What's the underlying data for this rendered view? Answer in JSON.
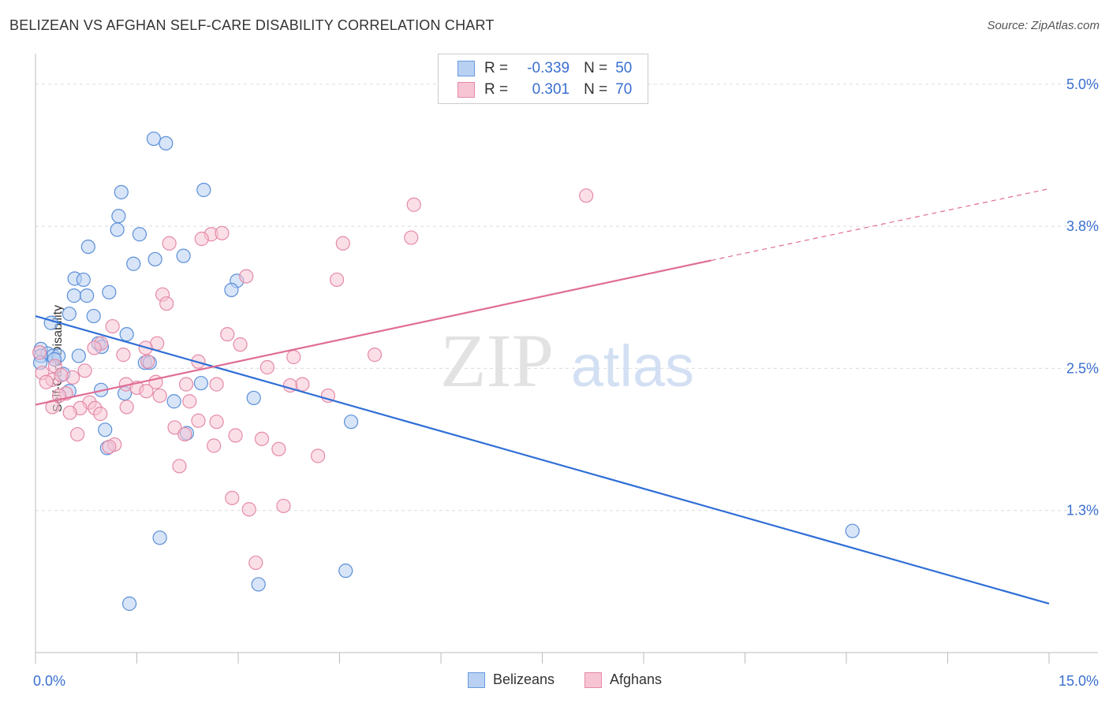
{
  "header": {
    "title": "BELIZEAN VS AFGHAN SELF-CARE DISABILITY CORRELATION CHART",
    "source": "Source: ZipAtlas.com"
  },
  "watermark": {
    "zip": "ZIP",
    "atlas": "atlas"
  },
  "legend": {
    "rows": [
      {
        "r_label": "R =",
        "r_value": "-0.339",
        "n_label": "N =",
        "n_value": "50",
        "color": "#6a9be0",
        "fill": "#b8d0f2"
      },
      {
        "r_label": "R =",
        "r_value": "0.301",
        "n_label": "N =",
        "n_value": "70",
        "color": "#e48aa8",
        "fill": "#f7c4d4"
      }
    ]
  },
  "bottom_legend": {
    "items": [
      "Belizeans",
      "Afghans"
    ]
  },
  "chart_data": {
    "type": "scatter",
    "title": "BELIZEAN VS AFGHAN SELF-CARE DISABILITY CORRELATION CHART",
    "xlabel": "",
    "ylabel": "Self-Care Disability",
    "xlim": [
      0,
      15
    ],
    "ylim": [
      0,
      5.2
    ],
    "x_tick_labels": [
      "0.0%",
      "15.0%"
    ],
    "y_ticks": [
      1.25,
      2.5,
      3.75,
      5.0
    ],
    "y_tick_labels": [
      "1.3%",
      "2.5%",
      "3.8%",
      "5.0%"
    ],
    "grid": true,
    "legend_position": "top-center",
    "series": [
      {
        "name": "Belizeans",
        "color": "#5b8fd9",
        "fill": "#b8d0f2",
        "trend": {
          "x0": 0,
          "y0": 2.96,
          "x1": 15,
          "y1": 0.43,
          "color": "#2f6fd6"
        },
        "points": [
          [
            1.75,
            4.52
          ],
          [
            1.93,
            4.48
          ],
          [
            1.27,
            4.05
          ],
          [
            2.49,
            4.07
          ],
          [
            1.23,
            3.84
          ],
          [
            1.21,
            3.72
          ],
          [
            1.54,
            3.68
          ],
          [
            0.78,
            3.57
          ],
          [
            1.77,
            3.46
          ],
          [
            1.45,
            3.42
          ],
          [
            2.19,
            3.49
          ],
          [
            0.58,
            3.29
          ],
          [
            0.71,
            3.28
          ],
          [
            2.98,
            3.27
          ],
          [
            2.9,
            3.19
          ],
          [
            1.09,
            3.17
          ],
          [
            0.57,
            3.14
          ],
          [
            0.76,
            3.14
          ],
          [
            0.5,
            2.98
          ],
          [
            0.86,
            2.96
          ],
          [
            0.23,
            2.9
          ],
          [
            1.35,
            2.8
          ],
          [
            0.93,
            2.72
          ],
          [
            0.98,
            2.69
          ],
          [
            0.08,
            2.67
          ],
          [
            0.18,
            2.63
          ],
          [
            0.26,
            2.61
          ],
          [
            0.34,
            2.61
          ],
          [
            0.08,
            2.61
          ],
          [
            0.64,
            2.61
          ],
          [
            0.28,
            2.58
          ],
          [
            0.07,
            2.55
          ],
          [
            1.62,
            2.55
          ],
          [
            1.69,
            2.55
          ],
          [
            0.41,
            2.45
          ],
          [
            2.45,
            2.37
          ],
          [
            0.97,
            2.31
          ],
          [
            1.32,
            2.28
          ],
          [
            3.23,
            2.24
          ],
          [
            2.05,
            2.21
          ],
          [
            4.67,
            2.03
          ],
          [
            1.03,
            1.96
          ],
          [
            2.24,
            1.93
          ],
          [
            1.06,
            1.8
          ],
          [
            12.09,
            1.07
          ],
          [
            1.84,
            1.01
          ],
          [
            4.59,
            0.72
          ],
          [
            3.3,
            0.6
          ],
          [
            1.39,
            0.43
          ],
          [
            0.5,
            2.3
          ]
        ]
      },
      {
        "name": "Afghans",
        "color": "#e48aa8",
        "fill": "#f7c4d4",
        "trend": {
          "x0": 0,
          "y0": 2.18,
          "x1": 10.0,
          "y1": 3.45,
          "x2": 15,
          "y2": 4.08,
          "color": "#e06d94"
        },
        "points": [
          [
            5.6,
            3.94
          ],
          [
            8.15,
            4.02
          ],
          [
            2.6,
            3.68
          ],
          [
            2.76,
            3.69
          ],
          [
            2.46,
            3.64
          ],
          [
            5.56,
            3.65
          ],
          [
            4.55,
            3.6
          ],
          [
            1.98,
            3.6
          ],
          [
            3.12,
            3.31
          ],
          [
            4.46,
            3.28
          ],
          [
            1.88,
            3.15
          ],
          [
            1.94,
            3.07
          ],
          [
            1.14,
            2.87
          ],
          [
            2.84,
            2.8
          ],
          [
            1.8,
            2.72
          ],
          [
            0.97,
            2.72
          ],
          [
            3.03,
            2.71
          ],
          [
            1.63,
            2.68
          ],
          [
            0.87,
            2.68
          ],
          [
            0.06,
            2.64
          ],
          [
            5.02,
            2.62
          ],
          [
            1.3,
            2.62
          ],
          [
            3.82,
            2.6
          ],
          [
            1.66,
            2.56
          ],
          [
            2.41,
            2.56
          ],
          [
            0.29,
            2.52
          ],
          [
            3.43,
            2.51
          ],
          [
            0.73,
            2.48
          ],
          [
            0.1,
            2.46
          ],
          [
            0.55,
            2.42
          ],
          [
            0.25,
            2.4
          ],
          [
            0.16,
            2.38
          ],
          [
            1.78,
            2.38
          ],
          [
            1.34,
            2.36
          ],
          [
            2.23,
            2.36
          ],
          [
            2.68,
            2.36
          ],
          [
            3.95,
            2.36
          ],
          [
            3.77,
            2.35
          ],
          [
            1.5,
            2.33
          ],
          [
            1.64,
            2.3
          ],
          [
            0.45,
            2.28
          ],
          [
            0.35,
            2.26
          ],
          [
            1.84,
            2.26
          ],
          [
            4.33,
            2.26
          ],
          [
            2.28,
            2.21
          ],
          [
            0.8,
            2.2
          ],
          [
            1.35,
            2.16
          ],
          [
            0.25,
            2.16
          ],
          [
            0.66,
            2.15
          ],
          [
            0.88,
            2.15
          ],
          [
            0.51,
            2.11
          ],
          [
            0.96,
            2.1
          ],
          [
            2.41,
            2.04
          ],
          [
            2.68,
            2.03
          ],
          [
            2.06,
            1.98
          ],
          [
            2.21,
            1.92
          ],
          [
            0.62,
            1.92
          ],
          [
            2.96,
            1.91
          ],
          [
            3.35,
            1.88
          ],
          [
            1.17,
            1.83
          ],
          [
            2.64,
            1.82
          ],
          [
            3.6,
            1.79
          ],
          [
            4.18,
            1.73
          ],
          [
            2.13,
            1.64
          ],
          [
            2.91,
            1.36
          ],
          [
            3.67,
            1.29
          ],
          [
            3.16,
            1.26
          ],
          [
            3.26,
            0.79
          ],
          [
            1.09,
            1.81
          ],
          [
            0.38,
            2.44
          ]
        ]
      }
    ]
  }
}
